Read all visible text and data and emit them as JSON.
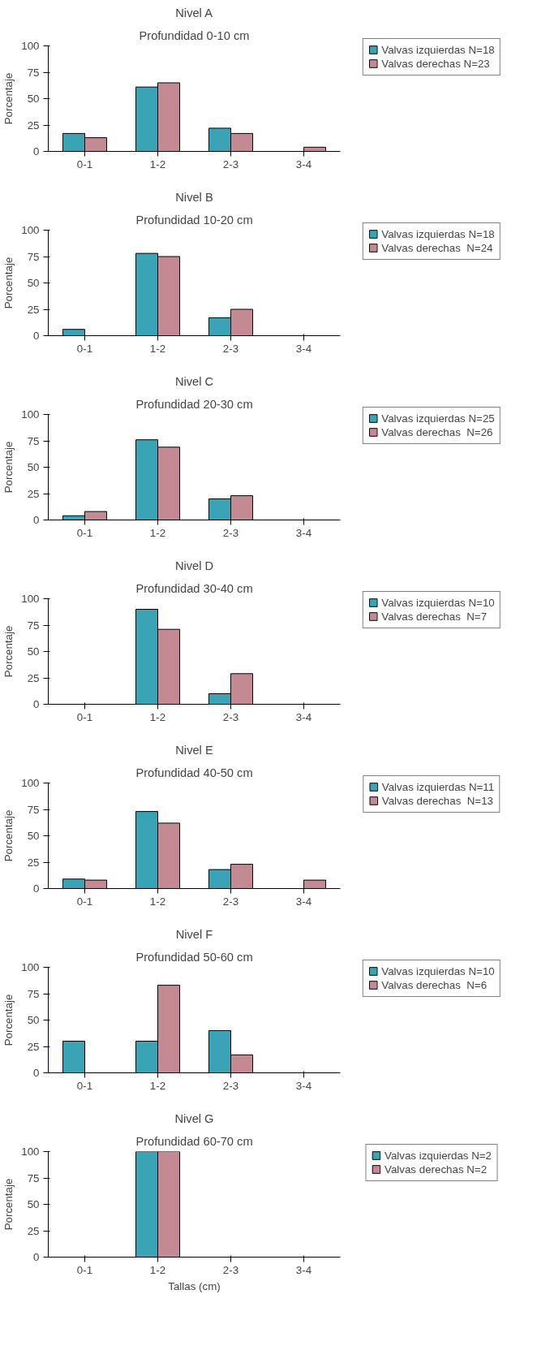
{
  "chart_data": [
    {
      "type": "bar",
      "title": "Nivel A",
      "subtitle": "Profundidad 0-10 cm",
      "ylabel": "Porcentaje",
      "categories": [
        "0-1",
        "1-2",
        "2-3",
        "3-4"
      ],
      "ylim": [
        0,
        100
      ],
      "yticks": [
        0,
        25,
        50,
        75,
        100
      ],
      "grid": false,
      "legend": "right",
      "series": [
        {
          "name": "Valvas izquierdas N=18",
          "color": "#3aa3b5",
          "values": [
            17,
            61,
            22,
            0
          ]
        },
        {
          "name": "Valvas derechas N=23",
          "color": "#c48a94",
          "values": [
            13,
            65,
            17,
            4
          ]
        }
      ]
    },
    {
      "type": "bar",
      "title": "Nivel B",
      "subtitle": "Profundidad 10-20 cm",
      "ylabel": "Porcentaje",
      "categories": [
        "0-1",
        "1-2",
        "2-3",
        "3-4"
      ],
      "ylim": [
        0,
        100
      ],
      "yticks": [
        0,
        25,
        50,
        75,
        100
      ],
      "grid": false,
      "legend": "right",
      "series": [
        {
          "name": "Valvas izquierdas N=18",
          "color": "#3aa3b5",
          "values": [
            6,
            78,
            17,
            0
          ]
        },
        {
          "name": "Valvas derechas  N=24",
          "color": "#c48a94",
          "values": [
            0,
            75,
            25,
            0
          ]
        }
      ]
    },
    {
      "type": "bar",
      "title": "Nivel C",
      "subtitle": "Profundidad 20-30 cm",
      "ylabel": "Porcentaje",
      "categories": [
        "0-1",
        "1-2",
        "2-3",
        "3-4"
      ],
      "ylim": [
        0,
        100
      ],
      "yticks": [
        0,
        25,
        50,
        75,
        100
      ],
      "grid": false,
      "legend": "right",
      "series": [
        {
          "name": "Valvas izquierdas N=25",
          "color": "#3aa3b5",
          "values": [
            4,
            76,
            20,
            0
          ]
        },
        {
          "name": "Valvas derechas  N=26",
          "color": "#c48a94",
          "values": [
            8,
            69,
            23,
            0
          ]
        }
      ]
    },
    {
      "type": "bar",
      "title": "Nivel D",
      "subtitle": "Profundidad 30-40 cm",
      "ylabel": "Porcentaje",
      "categories": [
        "0-1",
        "1-2",
        "2-3",
        "3-4"
      ],
      "ylim": [
        0,
        100
      ],
      "yticks": [
        0,
        25,
        50,
        75,
        100
      ],
      "grid": false,
      "legend": "right",
      "series": [
        {
          "name": "Valvas izquierdas N=10",
          "color": "#3aa3b5",
          "values": [
            0,
            90,
            10,
            0
          ]
        },
        {
          "name": "Valvas derechas  N=7",
          "color": "#c48a94",
          "values": [
            0,
            71,
            29,
            0
          ]
        }
      ]
    },
    {
      "type": "bar",
      "title": "Nivel E",
      "subtitle": "Profundidad 40-50 cm",
      "ylabel": "Porcentaje",
      "categories": [
        "0-1",
        "1-2",
        "2-3",
        "3-4"
      ],
      "ylim": [
        0,
        100
      ],
      "yticks": [
        0,
        25,
        50,
        75,
        100
      ],
      "grid": false,
      "legend": "right",
      "series": [
        {
          "name": "Valvas izquierdas N=11",
          "color": "#3aa3b5",
          "values": [
            9,
            73,
            18,
            0
          ]
        },
        {
          "name": "Valvas derechas  N=13",
          "color": "#c48a94",
          "values": [
            8,
            62,
            23,
            8
          ]
        }
      ]
    },
    {
      "type": "bar",
      "title": "Nivel F",
      "subtitle": "Profundidad 50-60 cm",
      "ylabel": "Porcentaje",
      "categories": [
        "0-1",
        "1-2",
        "2-3",
        "3-4"
      ],
      "ylim": [
        0,
        100
      ],
      "yticks": [
        0,
        25,
        50,
        75,
        100
      ],
      "grid": false,
      "legend": "right",
      "series": [
        {
          "name": "Valvas izquierdas N=10",
          "color": "#3aa3b5",
          "values": [
            30,
            30,
            40,
            0
          ]
        },
        {
          "name": "Valvas derechas  N=6",
          "color": "#c48a94",
          "values": [
            0,
            83,
            17,
            0
          ]
        }
      ]
    },
    {
      "type": "bar",
      "title": "Nivel G",
      "subtitle": "Profundidad 60-70 cm",
      "ylabel": "Porcentaje",
      "xlabel": "Tallas (cm)",
      "categories": [
        "0-1",
        "1-2",
        "2-3",
        "3-4"
      ],
      "ylim": [
        0,
        100
      ],
      "yticks": [
        0,
        25,
        50,
        75,
        100
      ],
      "grid": false,
      "legend": "right",
      "series": [
        {
          "name": "Valvas izquierdas N=2",
          "color": "#3aa3b5",
          "values": [
            0,
            100,
            0,
            0
          ]
        },
        {
          "name": "Valvas derechas N=2",
          "color": "#c48a94",
          "values": [
            0,
            100,
            0,
            0
          ]
        }
      ]
    }
  ]
}
